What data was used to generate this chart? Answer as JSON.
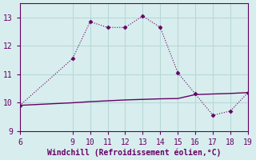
{
  "line1_x": [
    6,
    9,
    10,
    11,
    12,
    13,
    14,
    15,
    16,
    17,
    18,
    19
  ],
  "line1_y": [
    9.9,
    11.55,
    12.85,
    12.65,
    12.65,
    13.05,
    12.65,
    11.05,
    10.3,
    9.55,
    9.7,
    10.35
  ],
  "line2_x": [
    6,
    7,
    8,
    9,
    10,
    11,
    12,
    13,
    14,
    15,
    16,
    17,
    18,
    19
  ],
  "line2_y": [
    9.9,
    9.93,
    9.96,
    9.99,
    10.03,
    10.06,
    10.09,
    10.11,
    10.13,
    10.14,
    10.28,
    10.3,
    10.32,
    10.35
  ],
  "line_color": "#660066",
  "bg_color": "#d8eeee",
  "grid_color": "#b8d8d8",
  "xlabel": "Windchill (Refroidissement éolien,°C)",
  "xlim": [
    6,
    19
  ],
  "ylim": [
    9,
    13.5
  ],
  "xticks": [
    6,
    9,
    10,
    11,
    12,
    13,
    14,
    15,
    16,
    17,
    18,
    19
  ],
  "yticks": [
    9,
    10,
    11,
    12,
    13
  ],
  "font_color": "#660066",
  "marker_size": 2.5
}
